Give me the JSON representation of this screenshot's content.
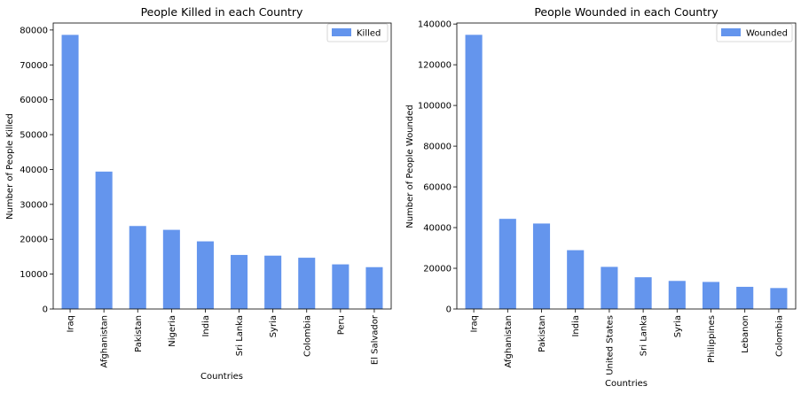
{
  "chart_data": [
    {
      "type": "bar",
      "title": "People Killed in each Country",
      "xlabel": "Countries",
      "ylabel": "Number of People Killed",
      "categories": [
        "Iraq",
        "Afghanistan",
        "Pakistan",
        "Nigeria",
        "India",
        "Sri Lanka",
        "Syria",
        "Colombia",
        "Peru",
        "El Salvador"
      ],
      "series": [
        {
          "name": "Killed",
          "values": [
            78600,
            39400,
            23800,
            22700,
            19400,
            15500,
            15300,
            14700,
            12800,
            12000
          ]
        }
      ],
      "ylim": [
        0,
        82000
      ],
      "yticks": [
        0,
        10000,
        20000,
        30000,
        40000,
        50000,
        60000,
        70000,
        80000
      ],
      "color": "#6495ED",
      "legend": "top-right",
      "grid": false
    },
    {
      "type": "bar",
      "title": "People Wounded in each Country",
      "xlabel": "Countries",
      "ylabel": "Number of People Wounded",
      "categories": [
        "Iraq",
        "Afghanistan",
        "Pakistan",
        "India",
        "United States",
        "Sri Lanka",
        "Syria",
        "Philippines",
        "Lebanon",
        "Colombia"
      ],
      "series": [
        {
          "name": "Wounded",
          "values": [
            134700,
            44300,
            42000,
            28900,
            20700,
            15600,
            13800,
            13300,
            10900,
            10300
          ]
        }
      ],
      "ylim": [
        0,
        140500
      ],
      "yticks": [
        0,
        20000,
        40000,
        60000,
        80000,
        100000,
        120000,
        140000
      ],
      "color": "#6495ED",
      "legend": "top-right",
      "grid": false
    }
  ]
}
